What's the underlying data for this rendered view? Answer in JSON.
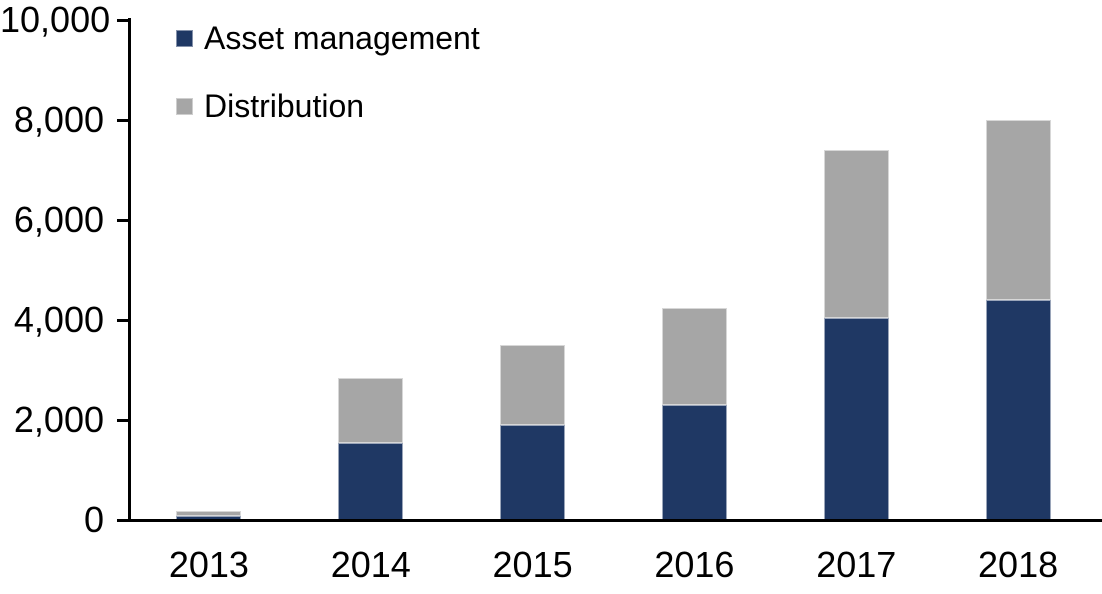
{
  "chart_data": {
    "type": "bar",
    "stacked": true,
    "title": "",
    "xlabel": "",
    "ylabel": "",
    "categories": [
      "2013",
      "2014",
      "2015",
      "2016",
      "2017",
      "2018"
    ],
    "series": [
      {
        "name": "Asset management",
        "color": "#1F3864",
        "values": [
          90,
          1550,
          1900,
          2300,
          4050,
          4400
        ]
      },
      {
        "name": "Distribution",
        "color": "#A6A6A6",
        "values": [
          100,
          1300,
          1600,
          1950,
          3350,
          3600
        ]
      }
    ],
    "totals": [
      190,
      2850,
      3500,
      4250,
      7400,
      8000
    ],
    "ylim": [
      0,
      10000
    ],
    "yticks": [
      {
        "value": 0,
        "label": "0"
      },
      {
        "value": 2000,
        "label": "2,000"
      },
      {
        "value": 4000,
        "label": "4,000"
      },
      {
        "value": 6000,
        "label": "6,000"
      },
      {
        "value": 8000,
        "label": "8,000"
      },
      {
        "value": 10000,
        "label": "10,000"
      }
    ],
    "grid": false,
    "legend_position": "top-left"
  },
  "colors": {
    "axis": "#000000",
    "text": "#000000",
    "background": "#FFFFFF"
  }
}
